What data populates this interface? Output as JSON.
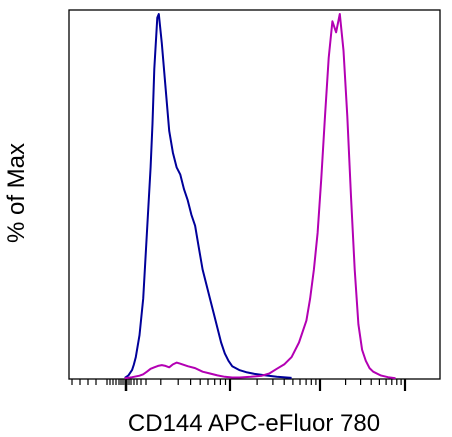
{
  "chart_data": {
    "type": "line",
    "chart_kind": "flow cytometry histogram",
    "xlabel": "CD144 APC-eFluor 780",
    "ylabel": "% of Max",
    "x_scale": "log (biexponential display)",
    "x_tick_labels_visible": false,
    "y_tick_labels_visible": false,
    "grid": false,
    "legend": "none",
    "ylim": [
      0,
      100
    ],
    "xlim": [
      0,
      100
    ],
    "series": [
      {
        "color": "#00009a",
        "x": [
          15,
          16,
          17,
          17.5,
          18,
          19,
          20,
          21,
          22,
          22.5,
          23,
          23.8,
          24.2,
          25,
          26,
          27,
          28,
          29,
          30,
          31,
          32,
          33,
          34,
          35,
          36,
          37,
          38,
          39,
          40,
          41,
          42,
          43,
          44,
          46,
          48,
          50,
          53,
          56,
          60
        ],
        "values": [
          0.3,
          1,
          2.5,
          4,
          6,
          12,
          22,
          40,
          58,
          70,
          85,
          99,
          100,
          92,
          80,
          68,
          62,
          58,
          56,
          52,
          49,
          45,
          42,
          36,
          30,
          26,
          22,
          18,
          14,
          10,
          7,
          5,
          3.5,
          2.4,
          1.8,
          1.4,
          1,
          0.6,
          0.3
        ]
      },
      {
        "color": "#b300b3",
        "x": [
          15,
          17,
          19,
          20,
          21,
          22,
          23,
          24,
          25,
          26,
          27,
          28,
          29,
          30,
          32,
          34,
          36,
          38,
          40,
          42,
          44,
          46,
          49,
          52,
          54,
          56,
          58,
          60,
          62,
          64,
          65,
          66,
          67,
          68,
          69,
          70,
          71,
          72,
          73,
          74,
          75,
          76,
          77,
          78,
          79,
          80,
          81,
          82,
          84,
          86,
          88
        ],
        "values": [
          0.2,
          0.5,
          0.9,
          1.3,
          2,
          2.8,
          3.2,
          3.6,
          3.8,
          3.6,
          3.2,
          4,
          4.5,
          4.2,
          3.5,
          3,
          2,
          1.5,
          1,
          0.6,
          0.4,
          0.4,
          0.6,
          0.9,
          1.5,
          2.8,
          4,
          6,
          10,
          16,
          22,
          30,
          40,
          55,
          72,
          88,
          98,
          95,
          100,
          90,
          72,
          50,
          30,
          15,
          8,
          5,
          3,
          2,
          1,
          0.5,
          0.2
        ]
      }
    ]
  }
}
